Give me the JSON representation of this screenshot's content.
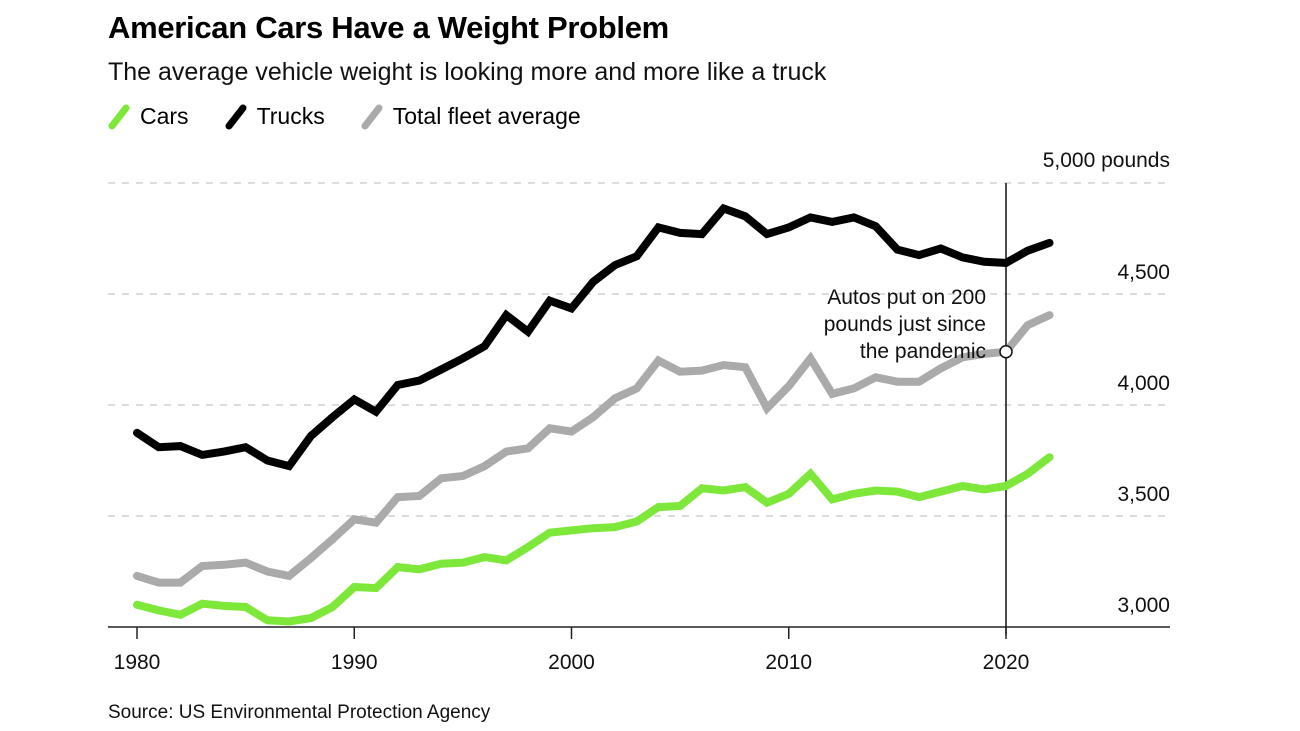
{
  "chart_data": {
    "type": "line",
    "title": "American Cars Have a Weight Problem",
    "subtitle": "The average vehicle weight is looking more and more like a truck",
    "xlabel": "",
    "ylabel": "pounds",
    "x": [
      1980,
      1981,
      1982,
      1983,
      1984,
      1985,
      1986,
      1987,
      1988,
      1989,
      1990,
      1991,
      1992,
      1993,
      1994,
      1995,
      1996,
      1997,
      1998,
      1999,
      2000,
      2001,
      2002,
      2003,
      2004,
      2005,
      2006,
      2007,
      2008,
      2009,
      2010,
      2011,
      2012,
      2013,
      2014,
      2015,
      2016,
      2017,
      2018,
      2019,
      2020,
      2021,
      2022
    ],
    "xlim": [
      1979,
      2027
    ],
    "ylim": [
      3000,
      5000
    ],
    "yticks": [
      3000,
      3500,
      4000,
      4500,
      5000
    ],
    "ytick_labels": [
      "3,000",
      "3,500",
      "4,000",
      "4,500",
      "5,000 pounds"
    ],
    "xticks": [
      1980,
      1990,
      2000,
      2010,
      2020
    ],
    "xtick_labels": [
      "1980",
      "1990",
      "2000",
      "2010",
      "2020"
    ],
    "grid": true,
    "legend_position": "top-left",
    "series": [
      {
        "name": "Cars",
        "color": "#7ee83a",
        "values": [
          3100,
          3075,
          3055,
          3105,
          3095,
          3090,
          3030,
          3025,
          3040,
          3090,
          3180,
          3175,
          3270,
          3260,
          3285,
          3290,
          3315,
          3300,
          3360,
          3425,
          3435,
          3445,
          3450,
          3475,
          3540,
          3545,
          3625,
          3615,
          3630,
          3560,
          3600,
          3690,
          3575,
          3600,
          3615,
          3610,
          3585,
          3610,
          3635,
          3620,
          3635,
          3690,
          3765
        ]
      },
      {
        "name": "Trucks",
        "color": "#000000",
        "values": [
          3875,
          3810,
          3815,
          3775,
          3790,
          3810,
          3750,
          3725,
          3860,
          3945,
          4025,
          3970,
          4090,
          4110,
          4160,
          4210,
          4265,
          4405,
          4330,
          4470,
          4435,
          4555,
          4630,
          4670,
          4800,
          4775,
          4770,
          4885,
          4850,
          4770,
          4800,
          4845,
          4825,
          4845,
          4805,
          4700,
          4675,
          4705,
          4665,
          4645,
          4640,
          4695,
          4730
        ]
      },
      {
        "name": "Total fleet average",
        "color": "#aaaaaa",
        "values": [
          3230,
          3200,
          3200,
          3275,
          3280,
          3290,
          3250,
          3230,
          3310,
          3395,
          3485,
          3470,
          3585,
          3590,
          3670,
          3680,
          3725,
          3790,
          3805,
          3895,
          3880,
          3945,
          4030,
          4075,
          4200,
          4150,
          4155,
          4180,
          4170,
          3985,
          4085,
          4210,
          4050,
          4075,
          4125,
          4105,
          4105,
          4165,
          4215,
          4230,
          4240,
          4360,
          4405
        ]
      }
    ],
    "annotations": [
      {
        "text_lines": [
          "Autos put on 200",
          "pounds just since",
          "the pandemic"
        ],
        "x": 2020,
        "series": "Total fleet average"
      }
    ],
    "reference_lines": [
      {
        "axis": "x",
        "value": 2020
      }
    ],
    "source": "Source: US Environmental Protection Agency"
  }
}
